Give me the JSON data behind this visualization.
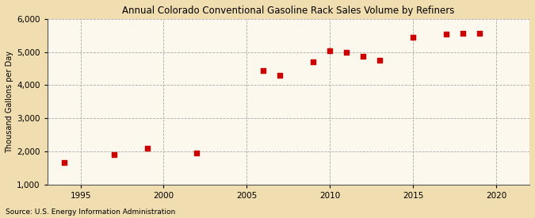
{
  "title": "Annual Colorado Conventional Gasoline Rack Sales Volume by Refiners",
  "ylabel": "Thousand Gallons per Day",
  "source": "Source: U.S. Energy Information Administration",
  "background_color": "#f0ddb0",
  "plot_background_color": "#fdf8ee",
  "marker_color": "#cc0000",
  "marker_size": 4,
  "marker_style": "s",
  "xlim": [
    1993,
    2022
  ],
  "ylim": [
    1000,
    6000
  ],
  "xticks": [
    1995,
    2000,
    2005,
    2010,
    2015,
    2020
  ],
  "yticks": [
    1000,
    2000,
    3000,
    4000,
    5000,
    6000
  ],
  "years": [
    1994,
    1997,
    1999,
    2002,
    2006,
    2007,
    2009,
    2010,
    2011,
    2012,
    2013,
    2015,
    2017,
    2018,
    2019
  ],
  "values": [
    1650,
    1900,
    2100,
    1950,
    4450,
    4300,
    4700,
    5050,
    5000,
    4870,
    4750,
    5450,
    5550,
    5570,
    5570
  ]
}
